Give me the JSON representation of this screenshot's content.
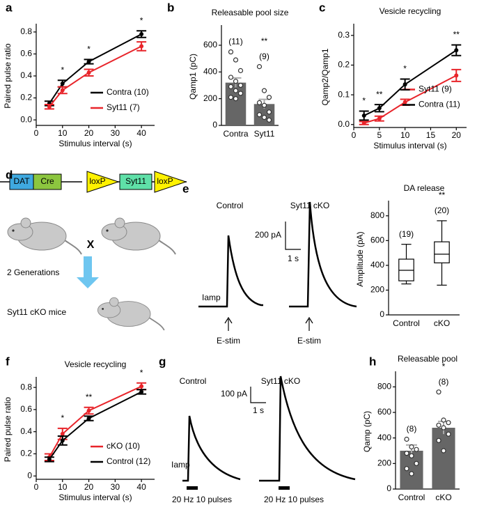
{
  "panel_labels": [
    "a",
    "b",
    "c",
    "d",
    "e",
    "f",
    "g",
    "h"
  ],
  "chart_data": [
    {
      "type": "line",
      "xlabel": "Stimulus interval (s)",
      "ylabel": "Paired pulse ratio",
      "x": [
        5,
        10,
        20,
        40
      ],
      "xlim": [
        0,
        45
      ],
      "xticks": [
        0,
        10,
        20,
        30,
        40
      ],
      "ylim": [
        -0.05,
        0.85
      ],
      "yticks": [
        {
          "value": 0,
          "label": "0.0"
        },
        0.2,
        0.4,
        0.6,
        0.8
      ],
      "series": [
        {
          "name": "Contra (10)",
          "color": "#000000",
          "values": [
            0.15,
            0.33,
            0.53,
            0.78
          ],
          "errors": [
            0.02,
            0.03,
            0.02,
            0.03
          ]
        },
        {
          "name": "Syt11 (7)",
          "color": "#e8242a",
          "values": [
            0.12,
            0.27,
            0.43,
            0.67
          ],
          "errors": [
            0.02,
            0.03,
            0.03,
            0.04
          ]
        }
      ],
      "legend": "lower right",
      "annotations": [
        {
          "x": 10,
          "text": "*"
        },
        {
          "x": 20,
          "text": "*"
        },
        {
          "x": 40,
          "text": "*"
        }
      ]
    },
    {
      "type": "bar",
      "title": "Releasable pool size",
      "ylabel": "Qamp1 (pC)",
      "categories": [
        "Contra",
        "Syt11"
      ],
      "values": [
        320,
        160
      ],
      "errors": [
        35,
        35
      ],
      "points": [
        [
          550,
          490,
          410,
          360,
          330,
          300,
          290,
          260,
          240,
          210,
          200
        ],
        [
          440,
          260,
          210,
          170,
          150,
          100,
          80,
          60,
          40
        ]
      ],
      "color": "#666666",
      "ylim": [
        0,
        730
      ],
      "yticks": [
        0,
        200,
        400,
        600
      ],
      "annotations": [
        {
          "category": "Contra",
          "text": "(11)"
        },
        {
          "category": "Syt11",
          "text": "**"
        },
        {
          "category": "Syt11",
          "text": "(9)"
        }
      ]
    },
    {
      "type": "line",
      "title": "Vesicle recycling",
      "xlabel": "Stimulus interval (s)",
      "ylabel": "Qamp2/Qamp1",
      "x": [
        2,
        5,
        10,
        20
      ],
      "xlim": [
        0,
        22
      ],
      "xticks": [
        0,
        5,
        10,
        15,
        20
      ],
      "ylim": [
        -0.01,
        0.33
      ],
      "yticks": [
        {
          "value": 0,
          "label": "0.0"
        },
        0.1,
        0.2,
        0.3
      ],
      "series": [
        {
          "name": "Syt11 (9)",
          "color": "#e8242a",
          "values": [
            0.005,
            0.02,
            0.075,
            0.165
          ],
          "errors": [
            0.005,
            0.008,
            0.01,
            0.02
          ]
        },
        {
          "name": "Contra (11)",
          "color": "#000000",
          "values": [
            0.03,
            0.055,
            0.135,
            0.25
          ],
          "errors": [
            0.015,
            0.012,
            0.018,
            0.018
          ]
        }
      ],
      "legend": "center right",
      "annotations": [
        {
          "x": 2,
          "text": "*"
        },
        {
          "x": 5,
          "text": "**"
        },
        {
          "x": 10,
          "text": "*"
        },
        {
          "x": 20,
          "text": "**"
        }
      ]
    },
    {
      "type": "box",
      "title": "DA release",
      "ylabel": "Amplitude (pA)",
      "categories": [
        "Control",
        "cKO"
      ],
      "whisker_low": [
        250,
        240
      ],
      "q1": [
        275,
        420
      ],
      "median": [
        360,
        490
      ],
      "q3": [
        450,
        590
      ],
      "whisker_high": [
        570,
        760
      ],
      "ylim": [
        0,
        900
      ],
      "yticks": [
        0,
        200,
        400,
        600,
        800
      ],
      "annotations": [
        {
          "category": "Control",
          "text": "(19)"
        },
        {
          "category": "cKO",
          "text": "**"
        },
        {
          "category": "cKO",
          "text": "(20)"
        }
      ]
    },
    {
      "type": "line",
      "title": "Vesicle recycling",
      "xlabel": "Stimulus interval (s)",
      "ylabel": "Paired pulse ratio",
      "x": [
        5,
        10,
        20,
        40
      ],
      "xlim": [
        0,
        45
      ],
      "xticks": [
        0,
        10,
        20,
        30,
        40
      ],
      "ylim": [
        -0.03,
        0.87
      ],
      "yticks": [
        0,
        0.2,
        0.4,
        0.6,
        0.8
      ],
      "series": [
        {
          "name": "cKO (10)",
          "color": "#e8242a",
          "values": [
            0.17,
            0.38,
            0.59,
            0.81
          ],
          "errors": [
            0.03,
            0.05,
            0.03,
            0.03
          ]
        },
        {
          "name": "Control (12)",
          "color": "#000000",
          "values": [
            0.15,
            0.32,
            0.52,
            0.76
          ],
          "errors": [
            0.02,
            0.04,
            0.02,
            0.02
          ]
        }
      ],
      "legend": "lower right",
      "annotations": [
        {
          "x": 10,
          "text": "*"
        },
        {
          "x": 20,
          "text": "**"
        },
        {
          "x": 40,
          "text": "*"
        }
      ]
    },
    {
      "type": "bar",
      "title": "Releasable pool",
      "ylabel": "Qamp (pC)",
      "categories": [
        "Control",
        "cKO"
      ],
      "values": [
        300,
        480
      ],
      "errors": [
        45,
        50
      ],
      "points": [
        [
          390,
          330,
          310,
          280,
          260,
          200,
          160,
          120
        ],
        [
          760,
          540,
          520,
          500,
          480,
          430,
          380,
          300
        ]
      ],
      "color": "#666666",
      "ylim": [
        0,
        900
      ],
      "yticks": [
        0,
        200,
        400,
        600,
        800
      ],
      "annotations": [
        {
          "category": "Control",
          "text": "(8)"
        },
        {
          "category": "cKO",
          "text": "*"
        },
        {
          "category": "cKO",
          "text": "(8)"
        }
      ]
    }
  ],
  "diagram": {
    "dat": "DAT",
    "cre": "Cre",
    "loxp_left": "loxP",
    "syt11": "Syt11",
    "loxp_right": "loxP",
    "cross": "X",
    "generations": "2 Generations",
    "result": "Syt11 cKO mice"
  },
  "traces_e": {
    "conditions": [
      "Control",
      "Syt11 cKO"
    ],
    "scale_y": "200 pA",
    "scale_x": "1 s",
    "current": "Iamp",
    "stim": [
      "E-stim",
      "E-stim"
    ]
  },
  "traces_g": {
    "conditions": [
      "Control",
      "Syt11 cKO"
    ],
    "scale_y": "100 pA",
    "scale_x": "1 s",
    "current": "Iamp",
    "stim": [
      "20 Hz 10 pulses",
      "20 Hz 10 pulses"
    ]
  }
}
